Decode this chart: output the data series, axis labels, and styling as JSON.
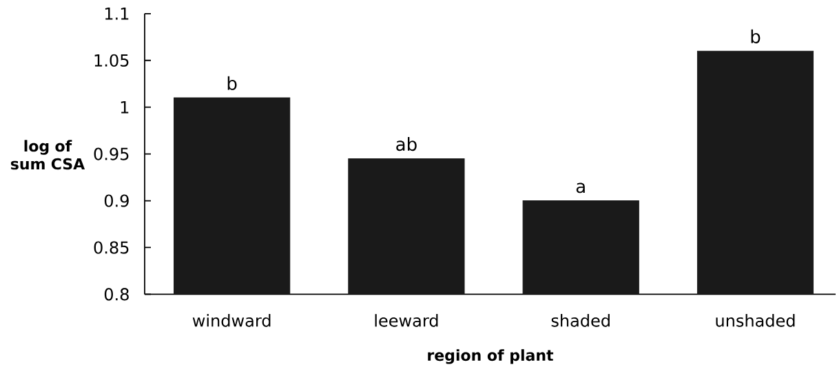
{
  "chart_data": {
    "type": "bar",
    "xlabel": "region of plant",
    "ylabel": "log of sum CSA",
    "categories": [
      "windward",
      "leeward",
      "shaded",
      "unshaded"
    ],
    "values": [
      1.01,
      0.945,
      0.9,
      1.06
    ],
    "color": "#1a1a1a",
    "ylim": [
      0.8,
      1.1
    ],
    "yticks": [
      0.8,
      0.85,
      0.9,
      0.95,
      1,
      1.05,
      1.1
    ],
    "annotations": [
      {
        "text": "b",
        "x": "windward",
        "y": 1.01
      },
      {
        "text": "ab",
        "x": "leeward",
        "y": 0.945
      },
      {
        "text": "a",
        "x": "shaded",
        "y": 0.9
      },
      {
        "text": "b",
        "x": "unshaded",
        "y": 1.06
      }
    ]
  }
}
